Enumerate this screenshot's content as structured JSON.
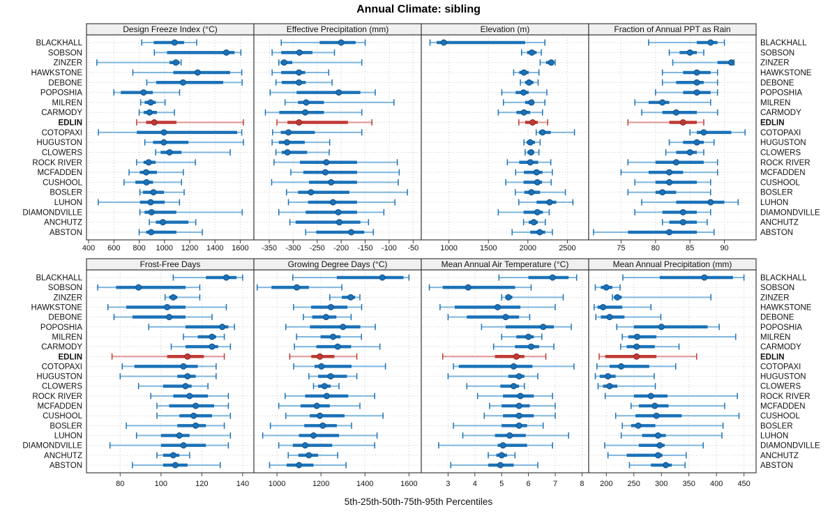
{
  "title": "Annual Climate: sibling",
  "footer": "5th-25th-50th-75th-95th Percentiles",
  "stations": [
    "BLACKHALL",
    "SOBSON",
    "ZINZER",
    "HAWKSTONE",
    "DEBONE",
    "POPOSHIA",
    "MILREN",
    "CARMODY",
    "EDLIN",
    "COTOPAXI",
    "HUGUSTON",
    "CLOWERS",
    "ROCK RIVER",
    "MCFADDEN",
    "CUSHOOL",
    "BOSLER",
    "LUHON",
    "DIAMONDVILLE",
    "ANCHUTZ",
    "ABSTON"
  ],
  "highlight_station": "EDLIN",
  "percentiles": [
    5,
    25,
    50,
    75,
    95
  ],
  "colors": {
    "normal": "#1b72b8",
    "normal_light": "#7fb6de",
    "normal_dark": "#0e4f86",
    "highlight": "#bf3a35",
    "highlight_light": "#dc9490",
    "highlight_dark": "#8c2523",
    "grid": "#c9c9c9",
    "header_bg": "#f0f0f0",
    "border": "#3c3c3c",
    "text": "#111111"
  },
  "chart_data": [
    {
      "type": "scatter",
      "subtype": "percentile-whisker",
      "title": "Design Freeze Index (°C)",
      "xlim": [
        383,
        1708
      ],
      "xticks": [
        400,
        600,
        800,
        1000,
        1200,
        1400,
        1600
      ],
      "rows": [
        [
          820,
          915,
          1080,
          1155,
          1255
        ],
        [
          920,
          1020,
          1490,
          1555,
          1605
        ],
        [
          465,
          1040,
          1090,
          1120,
          1132
        ],
        [
          750,
          1070,
          1263,
          1520,
          1612
        ],
        [
          860,
          935,
          1147,
          1465,
          1615
        ],
        [
          600,
          655,
          835,
          908,
          1120
        ],
        [
          812,
          843,
          891,
          932,
          1005
        ],
        [
          800,
          836,
          882,
          941,
          1079
        ],
        [
          780,
          855,
          920,
          1095,
          1625
        ],
        [
          477,
          781,
          996,
          1575,
          1612
        ],
        [
          845,
          910,
          995,
          1190,
          1625
        ],
        [
          930,
          970,
          1040,
          1135,
          1520
        ],
        [
          780,
          835,
          875,
          930,
          1245
        ],
        [
          720,
          805,
          855,
          940,
          1150
        ],
        [
          680,
          770,
          858,
          910,
          1135
        ],
        [
          806,
          830,
          913,
          996,
          1156
        ],
        [
          476,
          806,
          891,
          1002,
          1119
        ],
        [
          806,
          843,
          898,
          1094,
          1616
        ],
        [
          880,
          932,
          987,
          1190,
          1248
        ],
        [
          800,
          855,
          895,
          1095,
          1300
        ]
      ]
    },
    {
      "type": "scatter",
      "subtype": "percentile-whisker",
      "title": "Effective Precipitation (mm)",
      "xlim": [
        -382,
        -33
      ],
      "xticks": [
        -350,
        -300,
        -250,
        -200,
        -150,
        -100,
        -50
      ],
      "rows": [
        [
          -325,
          -245,
          -200,
          -170,
          -150
        ],
        [
          -344,
          -325,
          -287,
          -260,
          -214
        ],
        [
          -330,
          -326,
          -319,
          -302,
          -157
        ],
        [
          -344,
          -325,
          -288,
          -275,
          -226
        ],
        [
          -336,
          -324,
          -288,
          -274,
          -219
        ],
        [
          -348,
          -293,
          -205,
          -160,
          -129
        ],
        [
          -317,
          -290,
          -273,
          -236,
          -90
        ],
        [
          -358,
          -329,
          -275,
          -236,
          -157
        ],
        [
          -334,
          -312,
          -288,
          -186,
          -136
        ],
        [
          -343,
          -326,
          -310,
          -255,
          -157
        ],
        [
          -344,
          -330,
          -313,
          -276,
          -224
        ],
        [
          -336,
          -324,
          -312,
          -271,
          -225
        ],
        [
          -340,
          -286,
          -231,
          -167,
          -83
        ],
        [
          -305,
          -279,
          -233,
          -167,
          -79
        ],
        [
          -345,
          -267,
          -221,
          -167,
          -81
        ],
        [
          -314,
          -290,
          -263,
          -183,
          -62
        ],
        [
          -310,
          -269,
          -217,
          -167,
          -88
        ],
        [
          -330,
          -274,
          -206,
          -167,
          -111
        ],
        [
          -307,
          -295,
          -204,
          -160,
          -143
        ],
        [
          -274,
          -252,
          -179,
          -152,
          -133
        ]
      ]
    },
    {
      "type": "scatter",
      "subtype": "percentile-whisker",
      "title": "Elevation (m)",
      "xlim": [
        650,
        2770
      ],
      "xticks": [
        1000,
        1500,
        2000,
        2500
      ],
      "rows": [
        [
          760,
          845,
          935,
          1965,
          2215
        ],
        [
          1920,
          1990,
          2050,
          2110,
          2170
        ],
        [
          2155,
          2230,
          2295,
          2330,
          2345
        ],
        [
          1820,
          1890,
          1950,
          2010,
          2140
        ],
        [
          1905,
          1965,
          2015,
          2070,
          2130
        ],
        [
          1670,
          1845,
          1945,
          2010,
          2240
        ],
        [
          1690,
          1965,
          2045,
          2080,
          2215
        ],
        [
          1625,
          1855,
          1950,
          2030,
          2185
        ],
        [
          1885,
          1965,
          2060,
          2125,
          2250
        ],
        [
          2105,
          2140,
          2185,
          2290,
          2590
        ],
        [
          1950,
          1985,
          2030,
          2090,
          2155
        ],
        [
          1965,
          1995,
          2040,
          2080,
          2140
        ],
        [
          1740,
          1890,
          2030,
          2130,
          2290
        ],
        [
          1845,
          1950,
          2110,
          2185,
          2310
        ],
        [
          1720,
          1945,
          2120,
          2180,
          2295
        ],
        [
          1840,
          1955,
          2045,
          2155,
          2475
        ],
        [
          1885,
          2110,
          2275,
          2360,
          2570
        ],
        [
          1625,
          1945,
          2120,
          2190,
          2270
        ],
        [
          1945,
          2010,
          2075,
          2125,
          2220
        ],
        [
          1800,
          2030,
          2150,
          2220,
          2310
        ]
      ]
    },
    {
      "type": "scatter",
      "subtype": "percentile-whisker",
      "title": "Fraction of Annual PPT as Rain",
      "xlim": [
        70.3,
        94.6
      ],
      "xticks": [
        75,
        80,
        85,
        90
      ],
      "rows": [
        [
          79,
          86,
          88,
          89,
          90
        ],
        [
          82,
          83.5,
          85,
          86,
          87
        ],
        [
          82.5,
          89,
          91,
          91.2,
          91.4
        ],
        [
          81,
          84,
          86,
          88,
          89
        ],
        [
          81,
          83,
          86,
          87,
          89
        ],
        [
          80,
          84,
          86,
          88,
          89
        ],
        [
          77,
          79,
          81,
          82,
          88
        ],
        [
          78,
          81,
          83,
          86,
          89
        ],
        [
          76,
          82,
          84,
          86,
          87
        ],
        [
          85,
          86,
          87,
          91,
          93
        ],
        [
          82,
          84,
          86,
          87,
          88.5
        ],
        [
          81.5,
          83,
          85,
          86,
          87
        ],
        [
          76,
          80,
          83,
          87,
          89
        ],
        [
          75,
          79,
          82,
          84,
          89
        ],
        [
          77,
          80,
          82,
          86,
          88
        ],
        [
          76,
          80,
          81,
          83,
          88
        ],
        [
          78,
          83,
          88,
          90,
          92
        ],
        [
          77,
          81,
          84,
          86,
          88
        ],
        [
          81,
          82,
          84,
          86,
          87.5
        ],
        [
          71,
          76,
          82,
          86,
          88.5
        ]
      ]
    },
    {
      "type": "scatter",
      "subtype": "percentile-whisker",
      "title": "Frost-Free Days",
      "xlim": [
        63.5,
        145.5
      ],
      "xticks": [
        80,
        100,
        120,
        140
      ],
      "rows": [
        [
          106,
          122,
          132,
          137,
          140
        ],
        [
          69,
          78,
          89,
          112,
          119
        ],
        [
          102,
          104,
          106,
          108,
          119
        ],
        [
          74,
          83,
          103,
          112,
          132
        ],
        [
          77,
          86,
          104,
          112,
          125
        ],
        [
          94,
          112,
          130,
          133,
          136
        ],
        [
          111,
          118,
          125,
          127,
          131
        ],
        [
          105,
          112,
          125,
          128,
          134
        ],
        [
          76,
          103,
          113,
          121,
          131
        ],
        [
          81,
          87,
          111,
          118,
          127
        ],
        [
          80,
          108,
          113,
          117,
          127
        ],
        [
          89,
          101,
          112,
          115,
          123
        ],
        [
          95,
          106,
          114,
          123,
          133
        ],
        [
          98,
          104,
          117,
          126,
          133
        ],
        [
          98,
          109,
          116,
          125,
          134
        ],
        [
          83,
          108,
          117,
          122,
          131
        ],
        [
          88,
          100,
          109,
          114,
          134
        ],
        [
          75,
          100,
          111,
          122,
          133
        ],
        [
          98,
          101,
          106,
          109,
          114
        ],
        [
          86,
          101,
          107,
          113,
          129
        ]
      ]
    },
    {
      "type": "scatter",
      "subtype": "percentile-whisker",
      "title": "Growing Degree Days (°C)",
      "xlim": [
        895,
        1656
      ],
      "xticks": [
        1000,
        1200,
        1400,
        1600
      ],
      "rows": [
        [
          1072,
          1272,
          1479,
          1575,
          1600
        ],
        [
          910,
          975,
          1090,
          1145,
          1295
        ],
        [
          1240,
          1295,
          1335,
          1355,
          1377
        ],
        [
          1075,
          1155,
          1245,
          1320,
          1385
        ],
        [
          1120,
          1160,
          1223,
          1270,
          1337
        ],
        [
          1040,
          1150,
          1300,
          1379,
          1447
        ],
        [
          1089,
          1198,
          1255,
          1289,
          1384
        ],
        [
          1079,
          1179,
          1276,
          1337,
          1468
        ],
        [
          1058,
          1156,
          1195,
          1261,
          1363
        ],
        [
          1076,
          1171,
          1202,
          1339,
          1493
        ],
        [
          1145,
          1187,
          1244,
          1318,
          1363
        ],
        [
          1166,
          1187,
          1216,
          1244,
          1282
        ],
        [
          1037,
          1128,
          1226,
          1324,
          1444
        ],
        [
          1008,
          1107,
          1181,
          1240,
          1377
        ],
        [
          1040,
          1149,
          1195,
          1307,
          1482
        ],
        [
          970,
          1124,
          1208,
          1272,
          1339
        ],
        [
          935,
          1100,
          1166,
          1282,
          1455
        ],
        [
          1008,
          1072,
          1128,
          1251,
          1444
        ],
        [
          1051,
          1097,
          1145,
          1187,
          1276
        ],
        [
          966,
          1044,
          1100,
          1166,
          1314
        ]
      ]
    },
    {
      "type": "scatter",
      "subtype": "percentile-whisker",
      "title": "Mean Annual Air Temperature (°C)",
      "xlim": [
        2.0,
        8.25
      ],
      "xticks": [
        3,
        4,
        5,
        6,
        7,
        8
      ],
      "rows": [
        [
          4.9,
          6.0,
          6.9,
          7.5,
          7.8
        ],
        [
          2.3,
          2.8,
          3.75,
          5.5,
          6.1
        ],
        [
          5.0,
          5.15,
          5.25,
          5.4,
          7.3
        ],
        [
          2.7,
          3.25,
          4.85,
          5.7,
          7.0
        ],
        [
          3.0,
          3.7,
          5.15,
          5.65,
          6.05
        ],
        [
          4.25,
          5.15,
          6.55,
          6.95,
          7.6
        ],
        [
          5.0,
          5.55,
          6.0,
          6.2,
          6.5
        ],
        [
          4.7,
          5.5,
          6.1,
          6.4,
          6.95
        ],
        [
          2.8,
          4.75,
          5.55,
          5.85,
          6.65
        ],
        [
          3.2,
          3.4,
          5.45,
          6.15,
          7.7
        ],
        [
          3.0,
          5.25,
          5.65,
          5.85,
          6.35
        ],
        [
          3.7,
          4.95,
          5.45,
          5.65,
          5.85
        ],
        [
          4.1,
          5.05,
          5.7,
          6.2,
          6.9
        ],
        [
          4.55,
          5.0,
          5.65,
          6.05,
          7.0
        ],
        [
          4.35,
          5.05,
          5.65,
          6.2,
          7.0
        ],
        [
          3.2,
          5.0,
          5.65,
          5.95,
          6.55
        ],
        [
          3.55,
          4.75,
          5.3,
          5.9,
          7.5
        ],
        [
          2.65,
          4.85,
          5.05,
          5.95,
          6.9
        ],
        [
          4.5,
          4.8,
          5.0,
          5.2,
          5.5
        ],
        [
          3.1,
          4.5,
          4.95,
          5.45,
          6.35
        ]
      ]
    },
    {
      "type": "scatter",
      "subtype": "percentile-whisker",
      "title": "Mean Annual Precipitation (mm)",
      "xlim": [
        168,
        472
      ],
      "xticks": [
        200,
        250,
        300,
        350,
        400,
        450
      ],
      "rows": [
        [
          230,
          297,
          378,
          430,
          450
        ],
        [
          180,
          190,
          200,
          211,
          225
        ],
        [
          211,
          214,
          220,
          228,
          390
        ],
        [
          178,
          184,
          194,
          229,
          281
        ],
        [
          181,
          190,
          206,
          233,
          299
        ],
        [
          219,
          250,
          300,
          384,
          405
        ],
        [
          229,
          240,
          256,
          291,
          435
        ],
        [
          226,
          237,
          255,
          288,
          332
        ],
        [
          187,
          198,
          255,
          291,
          364
        ],
        [
          183,
          206,
          227,
          278,
          326
        ],
        [
          180,
          188,
          203,
          217,
          287
        ],
        [
          185,
          194,
          206,
          220,
          289
        ],
        [
          198,
          250,
          281,
          311,
          438
        ],
        [
          245,
          259,
          288,
          313,
          415
        ],
        [
          217,
          253,
          291,
          337,
          441
        ],
        [
          229,
          245,
          258,
          289,
          412
        ],
        [
          227,
          265,
          294,
          308,
          410
        ],
        [
          197,
          259,
          297,
          306,
          376
        ],
        [
          203,
          237,
          294,
          302,
          345
        ],
        [
          242,
          281,
          308,
          319,
          343
        ]
      ]
    }
  ]
}
